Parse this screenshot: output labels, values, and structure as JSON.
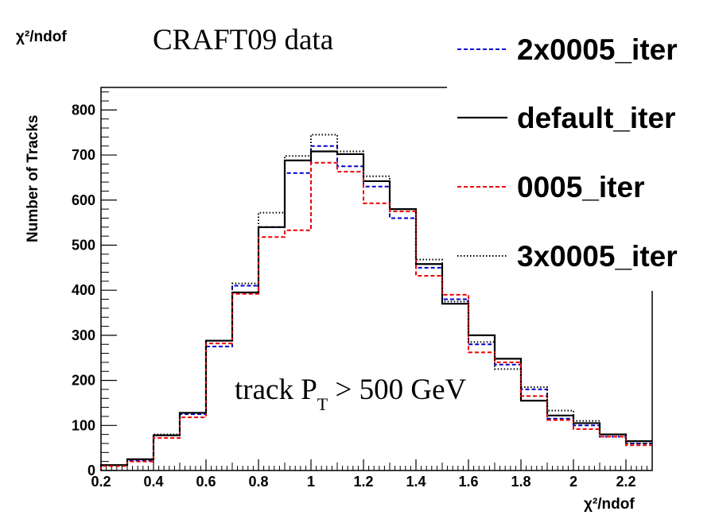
{
  "chart_data": {
    "type": "line",
    "title": "CRAFT09 data",
    "annotation": "track P",
    "annotation_sub": "T",
    "annotation_rest": " > 500 GeV",
    "corner_label": "χ²/ndof",
    "xlabel": "χ²/ndof",
    "ylabel": "Number of Tracks",
    "xlim": [
      0.2,
      2.3
    ],
    "ylim": [
      0,
      850
    ],
    "x_ticks": [
      {
        "value": 0.2,
        "label": "0.2"
      },
      {
        "value": 0.4,
        "label": "0.4"
      },
      {
        "value": 0.6,
        "label": "0.6"
      },
      {
        "value": 0.8,
        "label": "0.8"
      },
      {
        "value": 1.0,
        "label": "1"
      },
      {
        "value": 1.2,
        "label": "1.2"
      },
      {
        "value": 1.4,
        "label": "1.4"
      },
      {
        "value": 1.6,
        "label": "1.6"
      },
      {
        "value": 1.8,
        "label": "1.8"
      },
      {
        "value": 2.0,
        "label": "2"
      },
      {
        "value": 2.2,
        "label": "2.2"
      }
    ],
    "y_ticks": [
      {
        "value": 0,
        "label": "0"
      },
      {
        "value": 100,
        "label": "100"
      },
      {
        "value": 200,
        "label": "200"
      },
      {
        "value": 300,
        "label": "300"
      },
      {
        "value": 400,
        "label": "400"
      },
      {
        "value": 500,
        "label": "500"
      },
      {
        "value": 600,
        "label": "600"
      },
      {
        "value": 700,
        "label": "700"
      },
      {
        "value": 800,
        "label": "800"
      }
    ],
    "bin_edges": [
      0.2,
      0.3,
      0.4,
      0.5,
      0.6,
      0.7,
      0.8,
      0.9,
      1.0,
      1.1,
      1.2,
      1.3,
      1.4,
      1.5,
      1.6,
      1.7,
      1.8,
      1.9,
      2.0,
      2.1,
      2.2,
      2.3
    ],
    "legend_position": "top-right",
    "series": [
      {
        "name": "2x0005_iter",
        "color": "#0000cc",
        "dash": "dashed",
        "values": [
          12,
          22,
          78,
          125,
          275,
          410,
          540,
          660,
          720,
          675,
          630,
          560,
          450,
          380,
          280,
          235,
          180,
          115,
          100,
          75,
          60
        ]
      },
      {
        "name": "default_iter",
        "color": "#000000",
        "dash": "solid",
        "values": [
          12,
          25,
          78,
          128,
          288,
          395,
          540,
          688,
          708,
          702,
          642,
          580,
          458,
          370,
          300,
          248,
          155,
          122,
          105,
          80,
          65
        ]
      },
      {
        "name": "0005_iter",
        "color": "#ee0000",
        "dash": "dashed",
        "values": [
          10,
          20,
          72,
          118,
          282,
          392,
          518,
          533,
          683,
          663,
          593,
          575,
          432,
          390,
          262,
          240,
          165,
          112,
          92,
          75,
          56
        ]
      },
      {
        "name": "3x0005_iter",
        "color": "#000000",
        "dash": "dotted",
        "values": [
          12,
          25,
          80,
          128,
          288,
          415,
          572,
          698,
          745,
          708,
          653,
          580,
          468,
          375,
          285,
          225,
          185,
          133,
          110,
          80,
          60
        ]
      }
    ]
  }
}
